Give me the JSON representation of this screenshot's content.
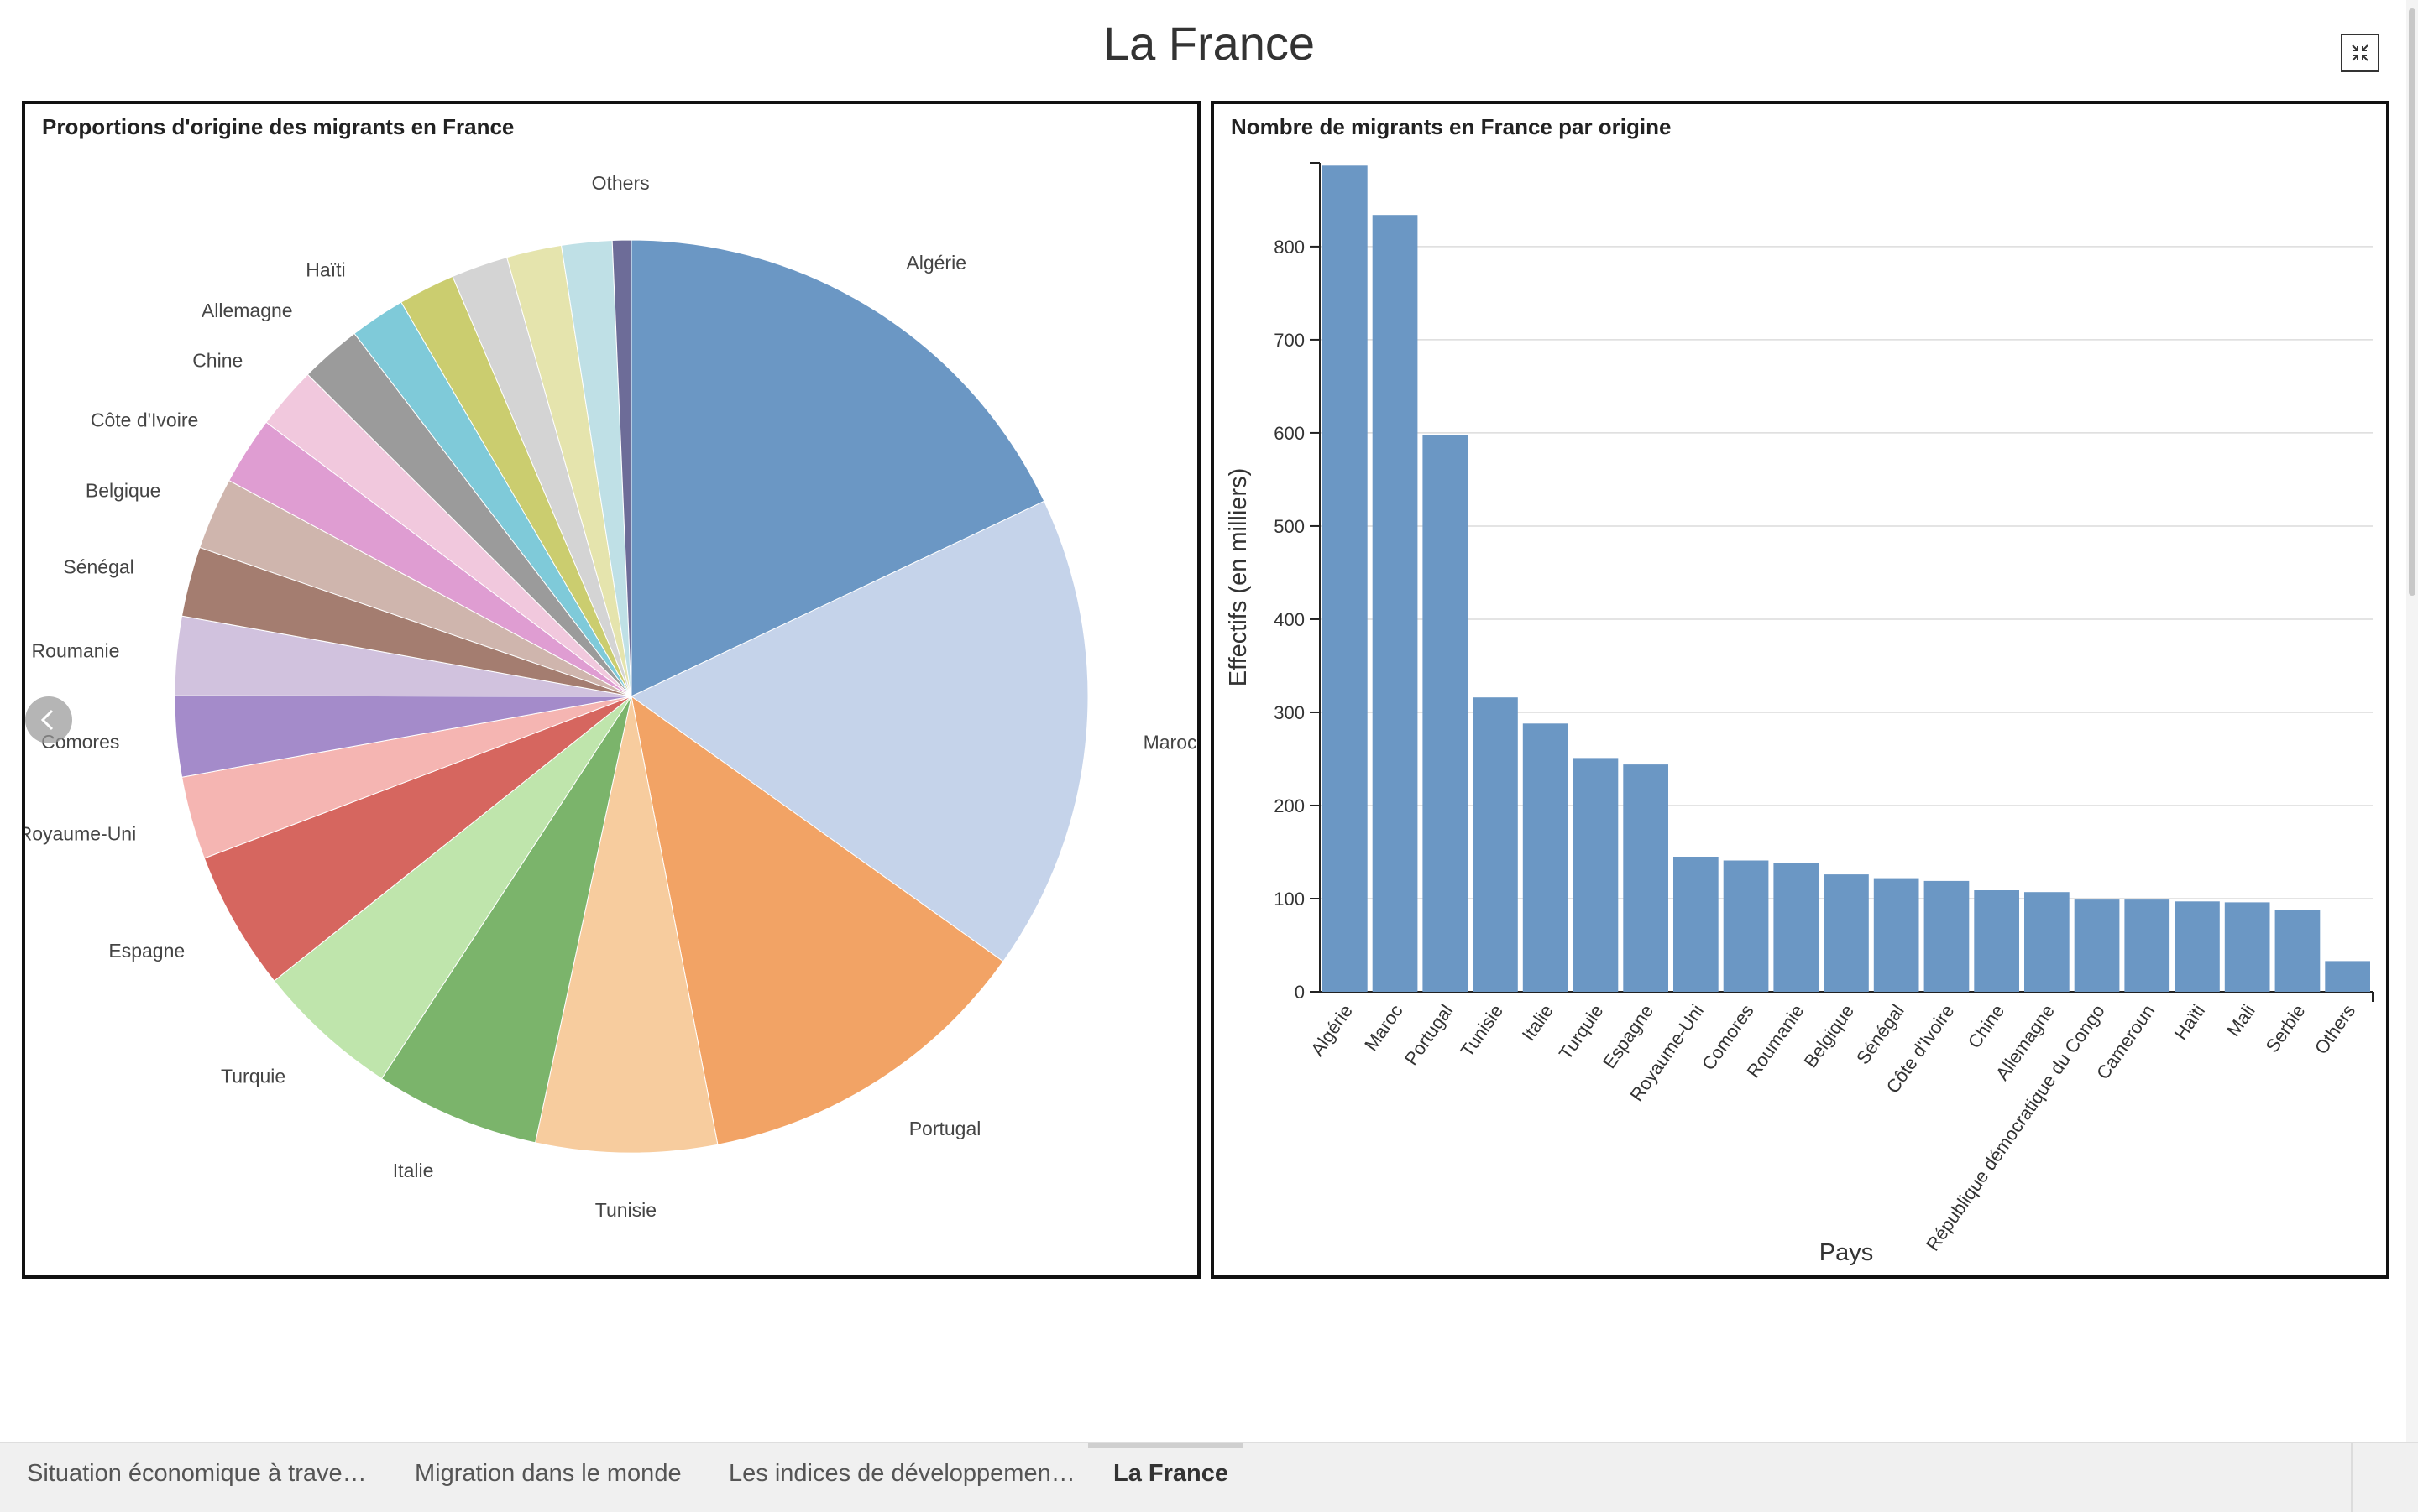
{
  "header": {
    "title": "La France",
    "fullscreen_icon": "collapse-icon"
  },
  "tabs": [
    {
      "label": "Situation économique à trave…",
      "active": false
    },
    {
      "label": "Migration dans le monde",
      "active": false
    },
    {
      "label": "Les indices de développemen…",
      "active": false
    },
    {
      "label": "La France",
      "active": true
    }
  ],
  "nav": {
    "prev_icon": "chevron-left-icon"
  },
  "chart_data": [
    {
      "type": "pie",
      "title": "Proportions d'origine des migrants en France",
      "start_angle": "12 o'clock, clockwise",
      "slices": [
        {
          "label": "Algérie",
          "value": 887,
          "color": "#6b97c4"
        },
        {
          "label": "Maroc",
          "value": 834,
          "color": "#c5d3ea"
        },
        {
          "label": "Portugal",
          "value": 598,
          "color": "#f2a365"
        },
        {
          "label": "Tunisie",
          "value": 316,
          "color": "#f7cc9e"
        },
        {
          "label": "Italie",
          "value": 288,
          "color": "#7bb46b"
        },
        {
          "label": "Turquie",
          "value": 251,
          "color": "#bfe5ac"
        },
        {
          "label": "Espagne",
          "value": 244,
          "color": "#d6665f"
        },
        {
          "label": "Royaume-Uni",
          "value": 145,
          "color": "#f5b5b2"
        },
        {
          "label": "Comores",
          "value": 141,
          "color": "#a48bca"
        },
        {
          "label": "Roumanie",
          "value": 138,
          "color": "#d1c2de"
        },
        {
          "label": "Sénégal",
          "value": 122,
          "color": "#a47d70"
        },
        {
          "label": "Belgique",
          "value": 126,
          "color": "#cfb5ad"
        },
        {
          "label": "Côte d'Ivoire",
          "value": 119,
          "color": "#df9dd2"
        },
        {
          "label": "Chine",
          "value": 109,
          "color": "#f1c8dd"
        },
        {
          "label": "Allemagne",
          "value": 107,
          "color": "#9b9b9b"
        },
        {
          "label": "Haïti",
          "value": 97,
          "color": "#7fcad9"
        },
        {
          "label": "République démocratique du Congo",
          "value": 99,
          "color": "#cbcd6f"
        },
        {
          "label": "Cameroun",
          "value": 99,
          "color": "#d4d4d4"
        },
        {
          "label": "Mali",
          "value": 96,
          "color": "#e5e4ad"
        },
        {
          "label": "Serbie",
          "value": 88,
          "color": "#bfe0e6"
        },
        {
          "label": "Others",
          "value": 33,
          "color": "#6d6c98"
        }
      ],
      "shown_labels": [
        "Algérie",
        "Maroc",
        "Portugal",
        "Tunisie",
        "Italie",
        "Turquie",
        "Espagne",
        "Royaume-Uni",
        "Comores",
        "Roumanie",
        "Sénégal",
        "Belgique",
        "Côte d'Ivoire",
        "Chine",
        "Allemagne",
        "Haïti",
        "Others"
      ]
    },
    {
      "type": "bar",
      "title": "Nombre de migrants en France par origine",
      "xlabel": "Pays",
      "ylabel": "Effectifs (en milliers)",
      "ylim": [
        0,
        890
      ],
      "yticks": [
        0,
        100,
        200,
        300,
        400,
        500,
        600,
        700,
        800
      ],
      "grid": true,
      "color": "#6b97c4",
      "categories": [
        "Algérie",
        "Maroc",
        "Portugal",
        "Tunisie",
        "Italie",
        "Turquie",
        "Espagne",
        "Royaume-Uni",
        "Comores",
        "Roumanie",
        "Belgique",
        "Sénégal",
        "Côte d'Ivoire",
        "Chine",
        "Allemagne",
        "République démocratique du Congo",
        "Cameroun",
        "Haïti",
        "Mali",
        "Serbie",
        "Others"
      ],
      "values": [
        887,
        834,
        598,
        316,
        288,
        251,
        244,
        145,
        141,
        138,
        126,
        122,
        119,
        109,
        107,
        99,
        99,
        97,
        96,
        88,
        33
      ]
    }
  ]
}
